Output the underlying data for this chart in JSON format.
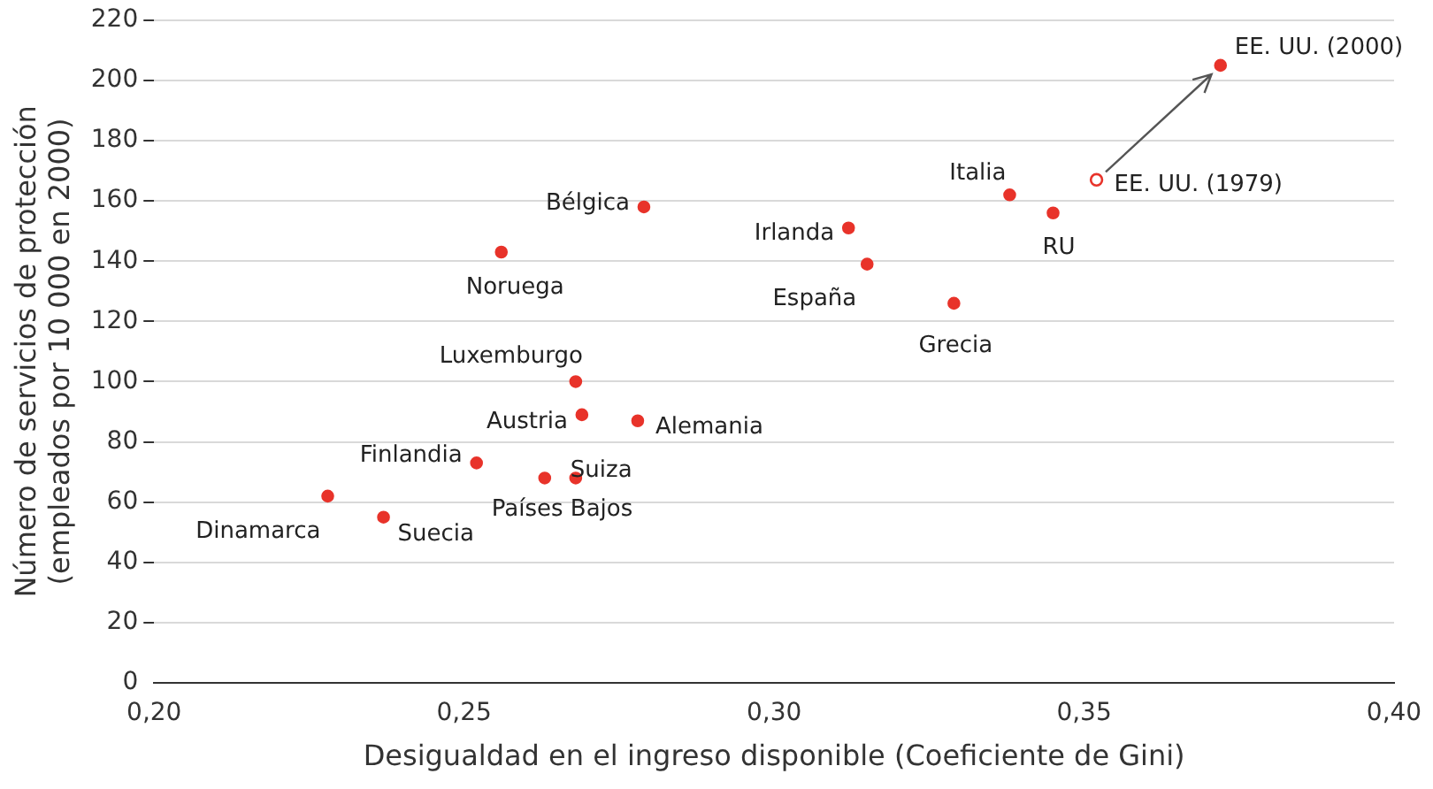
{
  "chart_data": {
    "type": "scatter",
    "xlabel": "Desigualdad en el ingreso disponible (Coeficiente de Gini)",
    "ylabel": "Número de servicios de protección (empleados por 10 000 en 2000)",
    "series": [
      {
        "color": "#e8332a",
        "marker": "circle",
        "x": [
          0.228,
          0.237,
          0.252,
          0.263,
          0.268,
          0.269,
          0.268,
          0.278,
          0.256,
          0.279,
          0.312,
          0.315,
          0.329,
          0.338,
          0.345,
          0.372
        ],
        "values": [
          62,
          55,
          73,
          68,
          68,
          89,
          100,
          87,
          143,
          158,
          151,
          139,
          126,
          162,
          156,
          205
        ]
      },
      {
        "color": "#e8332a",
        "marker": "circle",
        "x": [
          0.352
        ],
        "values": [
          167
        ]
      }
    ],
    "annotations": [
      {
        "text": "Dinamarca",
        "x": 0.228,
        "y": 62
      },
      {
        "text": "Suecia",
        "x": 0.237,
        "y": 55
      },
      {
        "text": "Finlandia",
        "x": 0.252,
        "y": 73
      },
      {
        "text": "Países Bajos",
        "x": 0.263,
        "y": 68
      },
      {
        "text": "Suiza",
        "x": 0.268,
        "y": 68
      },
      {
        "text": "Austria",
        "x": 0.269,
        "y": 89
      },
      {
        "text": "Luxemburgo",
        "x": 0.268,
        "y": 100
      },
      {
        "text": "Alemania",
        "x": 0.278,
        "y": 87
      },
      {
        "text": "Noruega",
        "x": 0.256,
        "y": 143
      },
      {
        "text": "Bélgica",
        "x": 0.279,
        "y": 158
      },
      {
        "text": "Irlanda",
        "x": 0.312,
        "y": 151
      },
      {
        "text": "España",
        "x": 0.315,
        "y": 139
      },
      {
        "text": "Grecia",
        "x": 0.329,
        "y": 126
      },
      {
        "text": "Italia",
        "x": 0.338,
        "y": 162
      },
      {
        "text": "RU",
        "x": 0.345,
        "y": 156
      },
      {
        "text": "EE. UU. (2000)",
        "x": 0.372,
        "y": 205
      },
      {
        "text": "EE. UU. (1979)",
        "x": 0.352,
        "y": 167
      }
    ],
    "xlim": [
      0.2,
      0.4
    ],
    "xticks": [
      {
        "value": 0.2,
        "label": "0,20"
      },
      {
        "value": 0.25,
        "label": "0,25"
      },
      {
        "value": 0.3,
        "label": "0,30"
      },
      {
        "value": 0.35,
        "label": "0,35"
      },
      {
        "value": 0.4,
        "label": "0,40"
      }
    ],
    "ylim": [
      0,
      220
    ],
    "yticks": [
      0,
      20,
      40,
      60,
      80,
      100,
      120,
      140,
      160,
      180,
      200,
      220
    ],
    "grid": "y",
    "legend": false
  }
}
